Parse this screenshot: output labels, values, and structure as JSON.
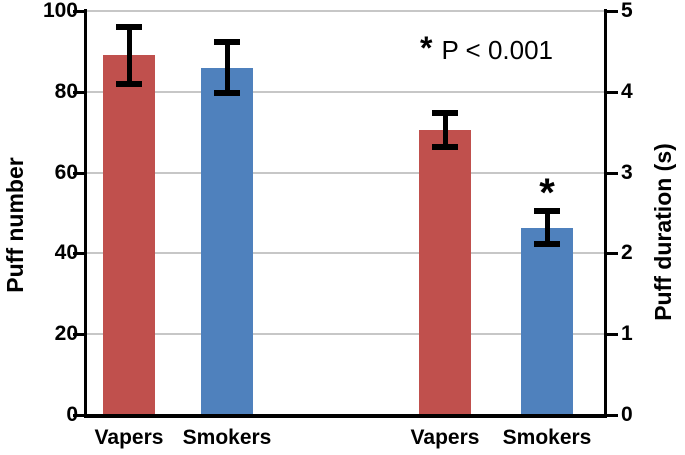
{
  "chart_data": {
    "type": "bar",
    "title": "",
    "categories": [
      "Vapers",
      "Smokers",
      "Vapers",
      "Smokers"
    ],
    "left_axis": {
      "label": "Puff number",
      "range": [
        0,
        100
      ],
      "ticks": [
        0,
        20,
        40,
        60,
        80,
        100
      ]
    },
    "right_axis": {
      "label": "Puff duration (s)",
      "range": [
        0,
        5
      ],
      "ticks": [
        0,
        1,
        2,
        3,
        4,
        5
      ]
    },
    "bars": [
      {
        "group": "Puff number",
        "label": "Vapers",
        "axis": "left",
        "value": 89,
        "error": 7,
        "color": "#C0504D",
        "significant": false
      },
      {
        "group": "Puff number",
        "label": "Smokers",
        "axis": "left",
        "value": 86,
        "error": 6.3,
        "color": "#4F81BD",
        "significant": false
      },
      {
        "group": "Puff duration (s)",
        "label": "Vapers",
        "axis": "right",
        "value": 3.53,
        "error": 0.21,
        "color": "#C0504D",
        "significant": false
      },
      {
        "group": "Puff duration (s)",
        "label": "Smokers",
        "axis": "right",
        "value": 2.32,
        "error": 0.2,
        "color": "#4F81BD",
        "significant": true
      }
    ],
    "annotation": {
      "symbol": "*",
      "text": "P < 0.001"
    },
    "error_bars": "symmetric, black I-beam caps",
    "legend": "none",
    "gridlines": {
      "show": true,
      "at": [
        20,
        40,
        60,
        80,
        100
      ]
    },
    "colors": {
      "vapers": "#C0504D",
      "smokers": "#4F81BD",
      "axis": "#000000",
      "gridline": "#C7C7C7",
      "background": "#FFFFFF"
    }
  }
}
